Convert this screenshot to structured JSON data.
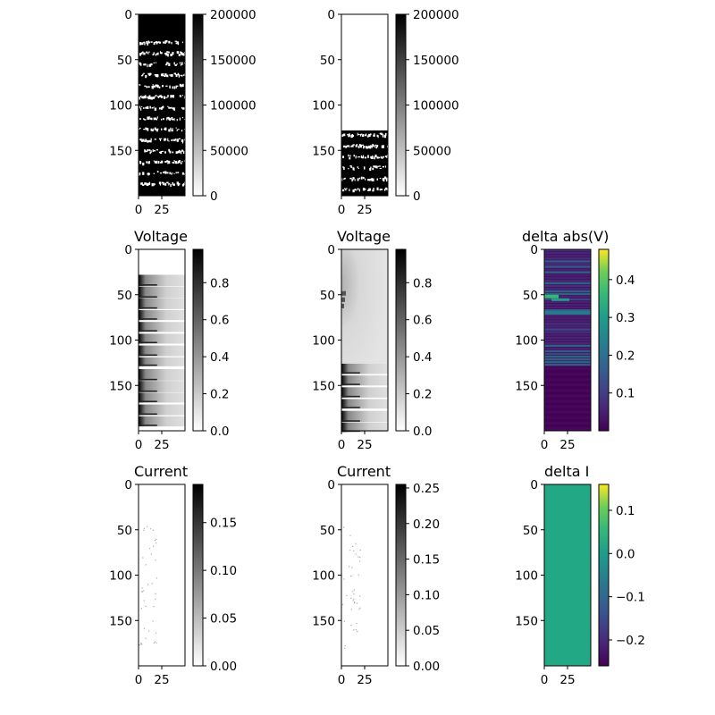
{
  "chart_data": [
    {
      "type": "heatmap",
      "title": "",
      "colormap": "gray_r",
      "y_ticks": [
        "0",
        "50",
        "100",
        "150"
      ],
      "x_ticks": [
        "0",
        "25"
      ],
      "colorbar_ticks": [
        "0",
        "50000",
        "100000",
        "150000",
        "200000"
      ],
      "clim": [
        0,
        200000
      ],
      "description_of_values": "alternating 0 and 200000 banded map, rows 0-200",
      "rows": 200,
      "cols": 50
    },
    {
      "type": "heatmap",
      "title": "",
      "colormap": "gray_r",
      "y_ticks": [
        "0",
        "50",
        "100",
        "150"
      ],
      "x_ticks": [
        "0",
        "25"
      ],
      "colorbar_ticks": [
        "0",
        "50000",
        "100000",
        "150000",
        "200000"
      ],
      "clim": [
        0,
        200000
      ],
      "rows": 200,
      "cols": 50
    },
    {
      "type": "heatmap",
      "title": "Voltage",
      "colormap": "gray_r",
      "y_ticks": [
        "0",
        "50",
        "100",
        "150"
      ],
      "x_ticks": [
        "0",
        "25"
      ],
      "colorbar_ticks": [
        "0.0",
        "0.2",
        "0.4",
        "0.6",
        "0.8"
      ],
      "clim": [
        0,
        0.98
      ],
      "rows": 200,
      "cols": 50
    },
    {
      "type": "heatmap",
      "title": "Voltage",
      "colormap": "gray_r",
      "y_ticks": [
        "0",
        "50",
        "100",
        "150"
      ],
      "x_ticks": [
        "0",
        "25"
      ],
      "colorbar_ticks": [
        "0.0",
        "0.2",
        "0.4",
        "0.6",
        "0.8"
      ],
      "clim": [
        0,
        0.98
      ],
      "rows": 200,
      "cols": 50
    },
    {
      "type": "heatmap",
      "title": "delta abs(V)",
      "colormap": "viridis",
      "y_ticks": [
        "0",
        "50",
        "100",
        "150"
      ],
      "x_ticks": [
        "0",
        "25"
      ],
      "colorbar_ticks": [
        "0.1",
        "0.2",
        "0.3",
        "0.4"
      ],
      "clim": [
        0,
        0.48
      ],
      "rows": 200,
      "cols": 50
    },
    {
      "type": "heatmap",
      "title": "Current",
      "colormap": "gray_r",
      "y_ticks": [
        "0",
        "50",
        "100",
        "150"
      ],
      "x_ticks": [
        "0",
        "25"
      ],
      "colorbar_ticks": [
        "0.00",
        "0.05",
        "0.10",
        "0.15"
      ],
      "clim": [
        0,
        0.19
      ],
      "rows": 200,
      "cols": 50
    },
    {
      "type": "heatmap",
      "title": "Current",
      "colormap": "gray_r",
      "y_ticks": [
        "0",
        "50",
        "100",
        "150"
      ],
      "x_ticks": [
        "0",
        "25"
      ],
      "colorbar_ticks": [
        "0.00",
        "0.05",
        "0.10",
        "0.15",
        "0.20",
        "0.25"
      ],
      "clim": [
        0,
        0.255
      ],
      "rows": 200,
      "cols": 50
    },
    {
      "type": "heatmap",
      "title": "delta I",
      "colormap": "viridis",
      "y_ticks": [
        "0",
        "50",
        "100",
        "150"
      ],
      "x_ticks": [
        "0",
        "25"
      ],
      "colorbar_ticks": [
        "0.1",
        "0.0",
        "−0.1",
        "−0.2"
      ],
      "clim": [
        -0.26,
        0.16
      ],
      "uniform_value": 0.0,
      "rows": 200,
      "cols": 50
    }
  ]
}
